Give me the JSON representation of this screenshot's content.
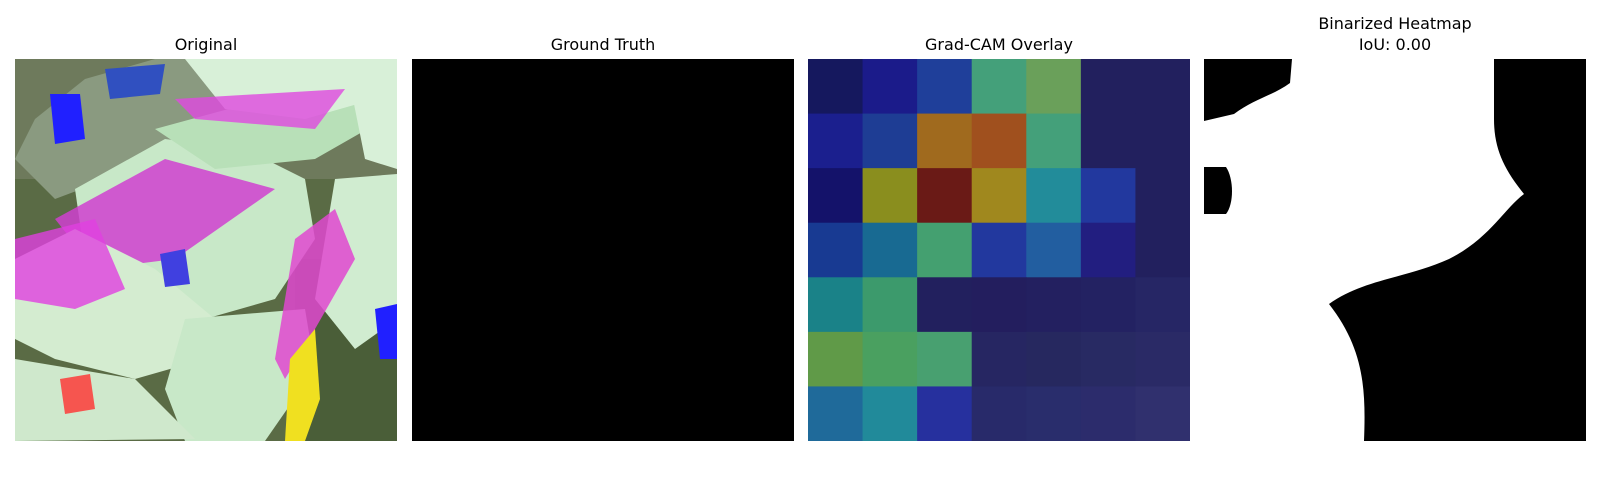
{
  "figure": {
    "panels": [
      {
        "title": "Original"
      },
      {
        "title": "Ground Truth"
      },
      {
        "title": "Grad-CAM Overlay"
      },
      {
        "title": "Binarized Heatmap\nIoU: 0.00"
      }
    ],
    "gradcam_heatmap": [
      [
        "#15185e",
        "#1b1b8a",
        "#1f3f9a",
        "#44a07a",
        "#6aa05a",
        "#22205e",
        "#22205e"
      ],
      [
        "#1b1f8e",
        "#1e3d94",
        "#a06a1e",
        "#a0501e",
        "#44a07a",
        "#22205e",
        "#22205e"
      ],
      [
        "#14126a",
        "#8a8e1e",
        "#6a1a16",
        "#a0881e",
        "#228c9a",
        "#22389e",
        "#22205e"
      ],
      [
        "#183a92",
        "#186a92",
        "#44a070",
        "#22389e",
        "#225ea0",
        "#221e80",
        "#22205e"
      ],
      [
        "#1a8288",
        "#3c9a6c",
        "#22205e",
        "#231e5e",
        "#232060",
        "#232262",
        "#262665"
      ],
      [
        "#609a48",
        "#4aa060",
        "#48a070",
        "#262662",
        "#26285f",
        "#282a63",
        "#2a2a66"
      ],
      [
        "#1f6a9a",
        "#218a9a",
        "#26309e",
        "#282a6a",
        "#292d6c",
        "#2c2c6c",
        "#30306e"
      ]
    ]
  }
}
